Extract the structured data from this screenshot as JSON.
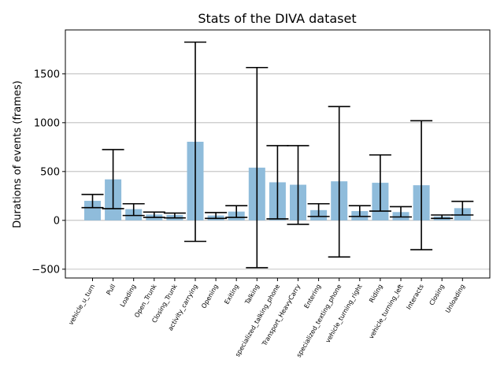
{
  "chart_data": {
    "type": "bar",
    "title": "Stats of the DIVA dataset",
    "xlabel": "",
    "ylabel": "Durations of events (frames)",
    "ylim": [
      -590,
      1950
    ],
    "yticks": [
      -500,
      0,
      500,
      1000,
      1500
    ],
    "ytick_labels": [
      "−500",
      "0",
      "500",
      "1000",
      "1500"
    ],
    "grid": "horizontal",
    "colors": {
      "bar": "#8fbcdb",
      "error_bar": "#000000",
      "grid": "#b0b0b0",
      "axes": "#000000"
    },
    "categories": [
      "vehicle_u_turn",
      "Pull",
      "Loading",
      "Open_Trunk",
      "Closing_Trunk",
      "activity_carrying",
      "Opening",
      "Exiting",
      "Talking",
      "specialized_talking_phone",
      "Transport_HeavyCarry",
      "Entering",
      "specialized_texting_phone",
      "vehicle_turning_right",
      "Riding",
      "vehicle_turning_left",
      "Interacts",
      "Closing",
      "Unloading"
    ],
    "values": [
      200,
      420,
      115,
      60,
      55,
      805,
      50,
      90,
      540,
      390,
      365,
      105,
      400,
      95,
      385,
      85,
      360,
      40,
      125
    ],
    "error_low": [
      130,
      120,
      50,
      30,
      25,
      -215,
      20,
      30,
      -485,
      15,
      -40,
      40,
      -375,
      40,
      95,
      35,
      -300,
      20,
      55
    ],
    "error_high": [
      265,
      725,
      170,
      85,
      75,
      1825,
      80,
      150,
      1565,
      765,
      765,
      170,
      1165,
      150,
      670,
      140,
      1020,
      55,
      195
    ]
  }
}
